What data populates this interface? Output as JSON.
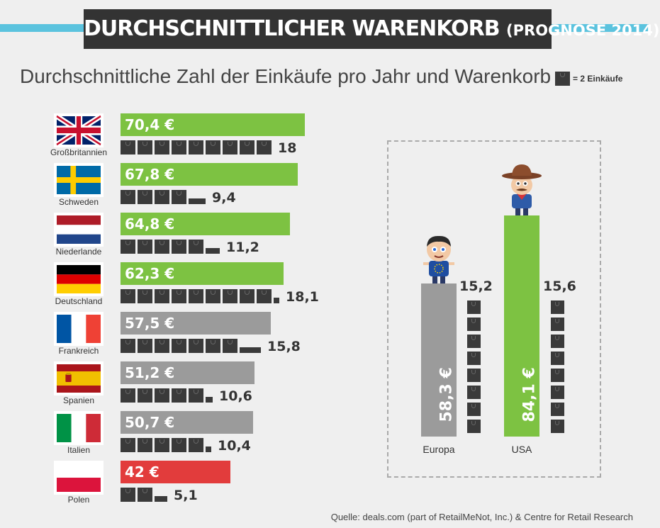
{
  "header": {
    "title": "DURCHSCHNITTLICHER WARENKORB",
    "title_sub": "(PROGNOSE 2014)",
    "subtitle": "Durchschnittliche Zahl der Einkäufe pro Jahr und Warenkorb :",
    "legend_label": "= 2 Einkäufe"
  },
  "colors": {
    "above": "#7dc242",
    "below": "#9b9b9b",
    "lowest": "#e23c3c",
    "bag": "#3a3a3a",
    "accent": "#5bc3de"
  },
  "chart_data": [
    {
      "type": "bar",
      "orientation": "horizontal",
      "categories": [
        "Großbritannien",
        "Schweden",
        "Niederlande",
        "Deutschland",
        "Frankreich",
        "Spanien",
        "Italien",
        "Polen"
      ],
      "series": [
        {
          "values": [
            70.4,
            67.8,
            64.8,
            62.3,
            57.5,
            51.2,
            50.7,
            42
          ]
        },
        {
          "values": [
            18,
            9.4,
            11.2,
            18.1,
            15.8,
            10.6,
            10.4,
            5.1
          ]
        }
      ],
      "value_labels": [
        "70,4 €",
        "67,8 €",
        "64,8 €",
        "62,3 €",
        "57,5 €",
        "51,2 €",
        "50,7 €",
        "42 €"
      ],
      "count_labels": [
        "18",
        "9,4",
        "11,2",
        "18,1",
        "15,8",
        "10,6",
        "10,4",
        "5,1"
      ],
      "flags": [
        "uk-flag-icon",
        "sweden-flag-icon",
        "netherlands-flag-icon",
        "germany-flag-icon",
        "france-flag-icon",
        "spain-flag-icon",
        "italy-flag-icon",
        "poland-flag-icon"
      ],
      "bar_colors": [
        "above",
        "above",
        "above",
        "above",
        "below",
        "below",
        "below",
        "lowest"
      ],
      "legend": "top-right"
    },
    {
      "type": "bar",
      "orientation": "vertical",
      "categories": [
        "Europa",
        "USA"
      ],
      "series": [
        {
          "values": [
            58.3,
            84.1
          ]
        },
        {
          "values": [
            15.2,
            15.6
          ]
        }
      ],
      "value_labels": [
        "58,3 €",
        "84,1 €"
      ],
      "count_labels": [
        "15,2",
        "15,6"
      ],
      "bar_colors": [
        "below",
        "above"
      ]
    }
  ],
  "footer": {
    "source": "Quelle: deals.com (part of RetailMeNot, Inc.) & Centre for Retail Research"
  }
}
